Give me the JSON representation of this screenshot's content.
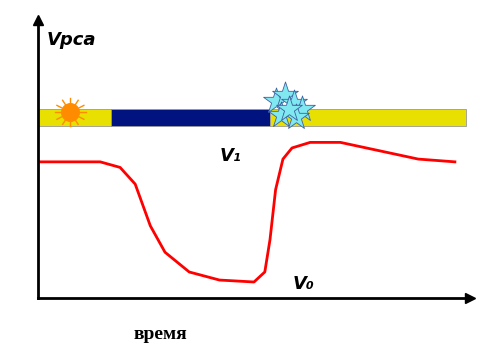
{
  "chart_data": {
    "type": "line",
    "y_label": "Vрса",
    "x_label": "время",
    "x": [
      0,
      14.4,
      19,
      22.5,
      26,
      29.4,
      35,
      42,
      50,
      52.5,
      53.7,
      55,
      56.7,
      58.8,
      63,
      70,
      79,
      88,
      96.5
    ],
    "values": [
      49,
      49,
      47,
      41,
      26,
      16.5,
      9.4,
      6.5,
      5.8,
      9.4,
      21,
      39,
      50,
      54,
      56,
      56,
      53,
      50,
      49
    ],
    "color": "#ff0000",
    "xlim": [
      0,
      100
    ],
    "ylim": [
      0,
      100
    ],
    "xticks": [],
    "yticks": [],
    "tick_labels": false,
    "grid": false,
    "phases": [
      {
        "start": 0,
        "end": 17,
        "color": "#e8e000"
      },
      {
        "start": 17,
        "end": 53.7,
        "color": "#00137f"
      },
      {
        "start": 53.7,
        "end": 99,
        "color": "#e8e000"
      }
    ],
    "annotations": [
      {
        "text": "V₁",
        "x": 42,
        "y": 51
      },
      {
        "text": "V₀",
        "x": 59,
        "y": 5
      }
    ]
  }
}
